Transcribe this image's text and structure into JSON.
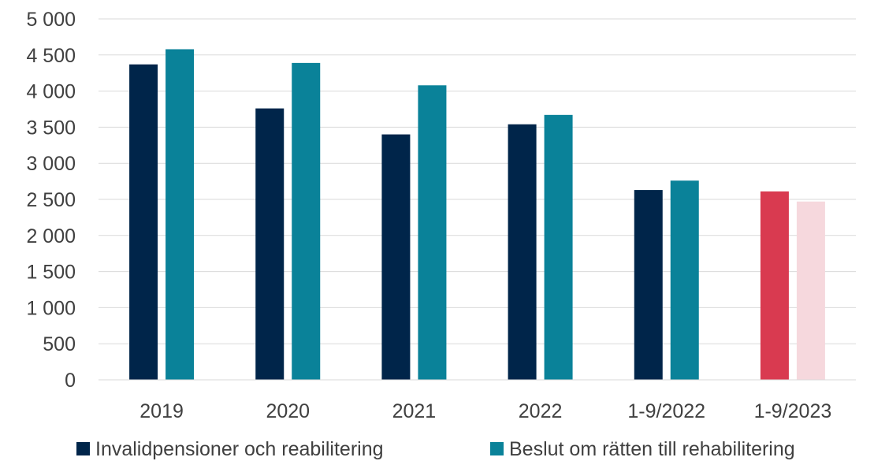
{
  "chart_data": {
    "type": "bar",
    "categories": [
      "2019",
      "2020",
      "2021",
      "2022",
      "1-9/2022",
      "1-9/2023"
    ],
    "series": [
      {
        "name": "Invalidpensioner och reabilitering",
        "values": [
          4370,
          3760,
          3400,
          3540,
          2630,
          2610
        ],
        "color": "#00254a",
        "highlight_color": "#d93a50"
      },
      {
        "name": "Beslut om rätten till rehabilitering",
        "values": [
          4580,
          4390,
          4080,
          3670,
          2760,
          2470
        ],
        "color": "#0a8299",
        "highlight_color": "#f6d8dd"
      }
    ],
    "highlight_category": "1-9/2023",
    "yticks": [
      "0",
      "500",
      "1 000",
      "1 500",
      "2 000",
      "2 500",
      "3 000",
      "3 500",
      "4 000",
      "4 500",
      "5 000"
    ],
    "ylim": [
      0,
      5000
    ],
    "ystep": 500,
    "grid": true,
    "grid_color": "#d9d9d9",
    "legend_position": "bottom",
    "title": "",
    "xlabel": "",
    "ylabel": ""
  }
}
